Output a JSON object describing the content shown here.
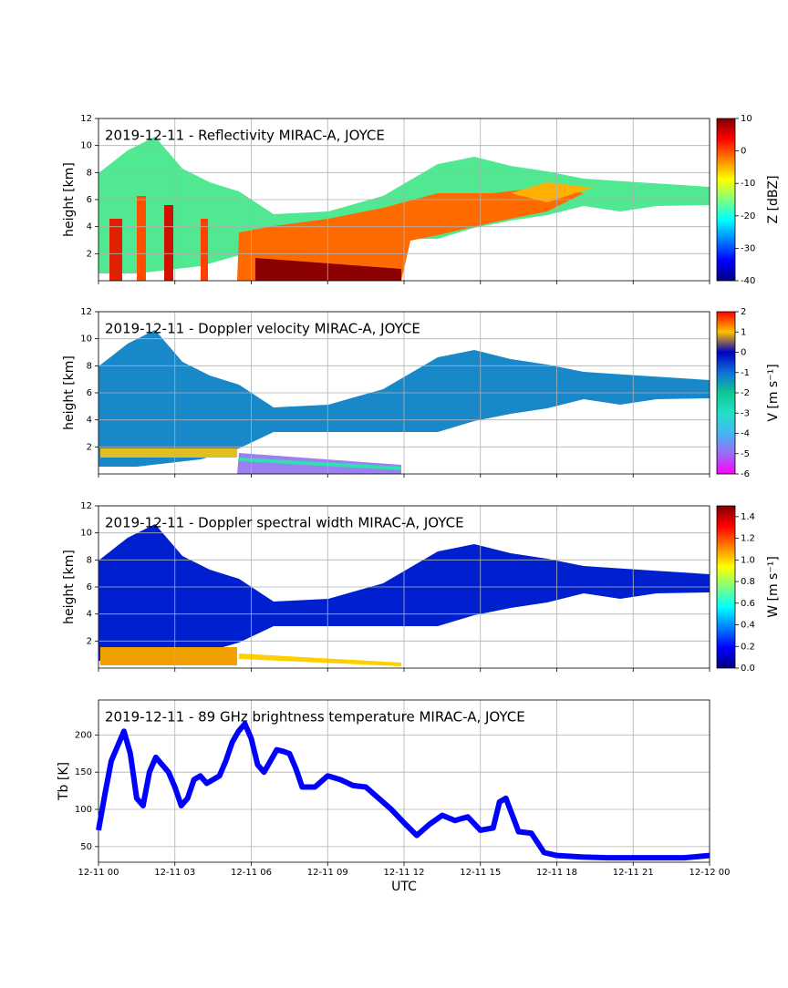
{
  "chart_data": [
    {
      "type": "radar",
      "title": "2019-12-11 - Reflectivity MIRAC-A, JOYCE",
      "ylabel": "height [km]",
      "ylim": [
        0,
        12
      ],
      "yticks": [
        2,
        4,
        6,
        8,
        10,
        12
      ],
      "colorbar": {
        "label": "Z [dBZ]",
        "lim": [
          -40,
          10
        ],
        "ticks": [
          -40,
          -30,
          -20,
          -10,
          0,
          10
        ],
        "colors": [
          "#00007f",
          "#0000ff",
          "#007fff",
          "#00ffff",
          "#7fff7f",
          "#ffff00",
          "#ff7f00",
          "#ff0000",
          "#7f0000"
        ]
      }
    },
    {
      "type": "radar",
      "title": "2019-12-11 - Doppler velocity MIRAC-A, JOYCE",
      "ylabel": "height [km]",
      "ylim": [
        0,
        12
      ],
      "yticks": [
        2,
        4,
        6,
        8,
        10,
        12
      ],
      "colorbar": {
        "label": "V [m s⁻¹]",
        "lim": [
          -6,
          2
        ],
        "ticks": [
          -6,
          -5,
          -4,
          -3,
          -2,
          -1,
          0,
          1,
          2
        ],
        "colors": [
          "#ff00ff",
          "#9a6cf5",
          "#45b5f5",
          "#20e0c8",
          "#10c890",
          "#1070d8",
          "#0000c0",
          "#ffc000",
          "#ff0000"
        ]
      }
    },
    {
      "type": "radar",
      "title": "2019-12-11 - Doppler spectral width MIRAC-A, JOYCE",
      "ylabel": "height [km]",
      "ylim": [
        0,
        12
      ],
      "yticks": [
        2,
        4,
        6,
        8,
        10,
        12
      ],
      "colorbar": {
        "label": "W [m s⁻¹]",
        "lim": [
          0,
          1.5
        ],
        "ticks": [
          {
            "value": 0,
            "label": "0.0"
          },
          0.2,
          0.4,
          0.6,
          0.8,
          {
            "value": 1,
            "label": "1.0"
          },
          1.2,
          1.4
        ],
        "colors": [
          "#00007f",
          "#0000ff",
          "#007fff",
          "#00ffff",
          "#7fff7f",
          "#ffff00",
          "#ff7f00",
          "#ff0000",
          "#7f0000"
        ]
      }
    },
    {
      "type": "line",
      "title": "2019-12-11 - 89 GHz brightness temperature MIRAC-A, JOYCE",
      "xlabel": "UTC",
      "ylabel": "Tb [K]",
      "xlim": [
        0,
        24
      ],
      "xticks": [
        {
          "value": 0,
          "label": "12-11 00"
        },
        {
          "value": 3,
          "label": "12-11 03"
        },
        {
          "value": 6,
          "label": "12-11 06"
        },
        {
          "value": 9,
          "label": "12-11 09"
        },
        {
          "value": 12,
          "label": "12-11 12"
        },
        {
          "value": 15,
          "label": "12-11 15"
        },
        {
          "value": 18,
          "label": "12-11 18"
        },
        {
          "value": 21,
          "label": "12-11 21"
        },
        {
          "value": 24,
          "label": "12-12 00"
        }
      ],
      "ylim": [
        29,
        247
      ],
      "yticks": [
        50,
        100,
        150,
        200
      ],
      "x": [
        0,
        0.25,
        0.5,
        0.75,
        1,
        1.25,
        1.5,
        1.75,
        2,
        2.25,
        2.5,
        2.75,
        3,
        3.25,
        3.5,
        3.75,
        4,
        4.25,
        4.5,
        4.75,
        5,
        5.25,
        5.5,
        5.75,
        6,
        6.25,
        6.5,
        6.75,
        7,
        7.25,
        7.5,
        7.75,
        8,
        8.5,
        9,
        9.5,
        10,
        10.5,
        11,
        11.5,
        12,
        12.5,
        13,
        13.5,
        14,
        14.5,
        15,
        15.5,
        15.75,
        16,
        16.5,
        17,
        17.25,
        17.5,
        18,
        19,
        20,
        21,
        22,
        23,
        24
      ],
      "series": [
        {
          "color": "#0000ff",
          "values": [
            72,
            120,
            165,
            185,
            205,
            175,
            115,
            105,
            150,
            170,
            160,
            150,
            130,
            105,
            115,
            140,
            145,
            135,
            140,
            145,
            165,
            190,
            205,
            215,
            195,
            160,
            150,
            165,
            180,
            178,
            175,
            155,
            130,
            130,
            145,
            140,
            132,
            130,
            115,
            100,
            82,
            65,
            80,
            92,
            85,
            90,
            72,
            75,
            110,
            115,
            70,
            68,
            55,
            42,
            38,
            36,
            35,
            35,
            35,
            35,
            38
          ]
        }
      ]
    }
  ]
}
